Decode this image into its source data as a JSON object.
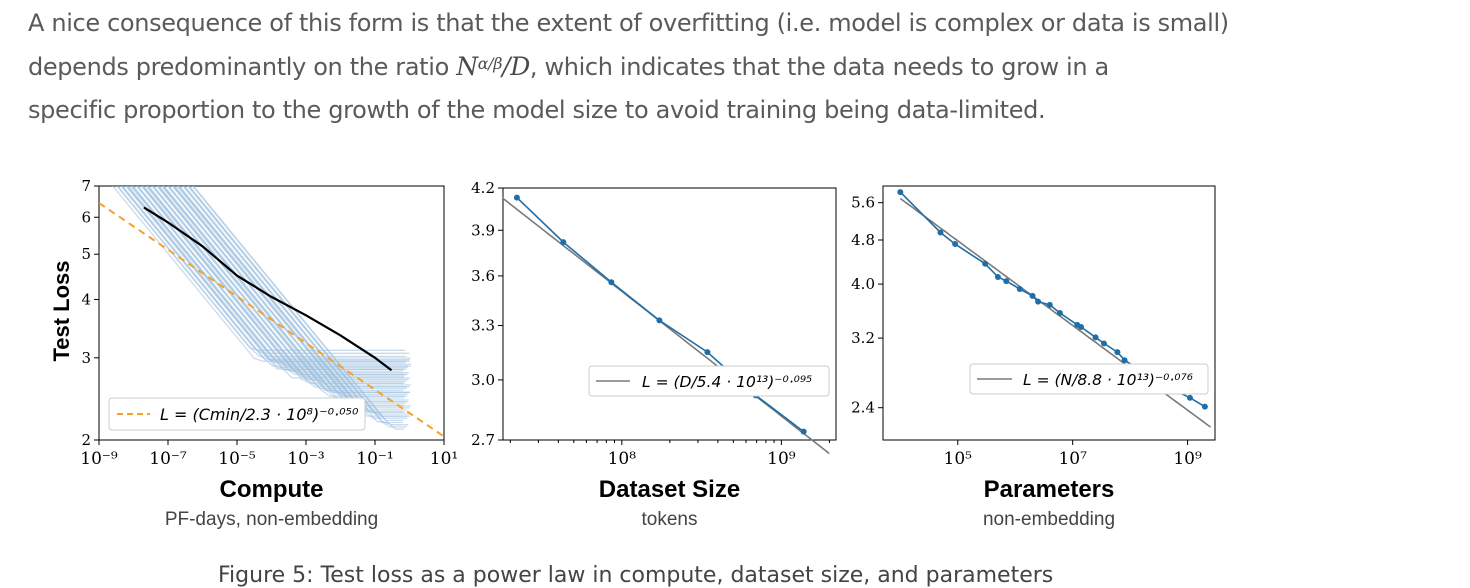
{
  "paragraph": {
    "line1": "A nice consequence of this form is that the extent of overfitting (i.e. model is complex or data is small)",
    "line2_pre": "depends predominantly on the ratio ",
    "math_base": "N",
    "math_sup": "α/β",
    "math_rest": "/D",
    "line2_post": ", which indicates that the data needs to grow in a",
    "line3": "specific proportion to the growth of the model size to avoid training being data-limited."
  },
  "caption": "Figure 5: Test loss as a power law in compute, dataset size, and parameters",
  "colors": {
    "curve_light": "#9cc0de",
    "frontier": "#000000",
    "fit_dashed": "#f5a12a",
    "data_line": "#1f6ea8",
    "fit_line": "#7a7a7a"
  },
  "chart_data": [
    {
      "type": "line",
      "title": "",
      "xlabel": "Compute",
      "xsublabel": "PF-days, non-embedding",
      "ylabel": "Test Loss",
      "xscale": "log",
      "yscale": "log",
      "xlim": [
        1e-09,
        10
      ],
      "ylim": [
        2,
        7
      ],
      "x_ticks": [
        "10⁻⁹",
        "10⁻⁷",
        "10⁻⁵",
        "10⁻³",
        "10⁻¹",
        "10¹"
      ],
      "y_ticks": [
        "2",
        "3",
        "4",
        "5",
        "6",
        "7"
      ],
      "legend": {
        "text": "L = (Cmin/2.3 · 10⁸)⁻⁰·⁰⁵⁰",
        "placement": "lower-left"
      },
      "fit": {
        "c0": 230000000.0,
        "exponent": -0.05
      },
      "frontier": {
        "x": [
          2e-08,
          1e-07,
          1e-06,
          1e-05,
          0.0001,
          0.001,
          0.01,
          0.1,
          0.3
        ],
        "y": [
          6.3,
          5.85,
          5.2,
          4.5,
          4.05,
          3.7,
          3.35,
          3.0,
          2.82
        ]
      },
      "background_curves": "many light-blue training curves"
    },
    {
      "type": "line",
      "title": "",
      "xlabel": "Dataset Size",
      "xsublabel": "tokens",
      "xscale": "log",
      "yscale": "log",
      "xlim": [
        18000000.0,
        2200000000.0
      ],
      "ylim": [
        2.7,
        4.2
      ],
      "x_ticks": [
        "10⁸",
        "10⁹"
      ],
      "y_ticks": [
        "2.7",
        "3.0",
        "3.3",
        "3.6",
        "3.9",
        "4.2"
      ],
      "legend": {
        "text": "L = (D/5.4 · 10¹³)⁻⁰·⁰⁹⁵",
        "placement": "top-right"
      },
      "fit": {
        "c0": 54000000000000.0,
        "exponent": -0.095
      },
      "points": {
        "x": [
          22000000.0,
          43000000.0,
          86000000.0,
          172000000.0,
          344000000.0,
          690000000.0,
          1380000000.0,
          1900000000.0
        ],
        "y": [
          4.13,
          3.82,
          3.56,
          3.33,
          3.15,
          2.92,
          2.74,
          2.74
        ]
      }
    },
    {
      "type": "line",
      "title": "",
      "xlabel": "Parameters",
      "xsublabel": "non-embedding",
      "xscale": "log",
      "yscale": "log",
      "xlim": [
        5000.0,
        3000000000.0
      ],
      "ylim": [
        2.1,
        6.0
      ],
      "x_ticks": [
        "10⁵",
        "10⁷",
        "10⁹"
      ],
      "y_ticks": [
        "2.4",
        "3.2",
        "4.0",
        "4.8",
        "5.6"
      ],
      "legend": {
        "text": "L = (N/8.8 · 10¹³)⁻⁰·⁰⁷⁶",
        "placement": "top-right"
      },
      "fit": {
        "c0": 88000000000000.0,
        "exponent": -0.076
      },
      "points": {
        "x": [
          10000.0,
          50000.0,
          90000.0,
          300000.0,
          500000.0,
          700000.0,
          1200000.0,
          2000000.0,
          2500000.0,
          4000000.0,
          6000000.0,
          12000000.0,
          14000000.0,
          25000000.0,
          35000000.0,
          60000000.0,
          80000000.0,
          150000000.0,
          400000000.0,
          1100000000.0,
          2000000000.0
        ],
        "y": [
          5.85,
          4.95,
          4.72,
          4.35,
          4.12,
          4.05,
          3.92,
          3.81,
          3.72,
          3.67,
          3.55,
          3.38,
          3.35,
          3.21,
          3.13,
          3.02,
          2.92,
          2.8,
          2.63,
          2.5,
          2.41
        ]
      }
    }
  ]
}
